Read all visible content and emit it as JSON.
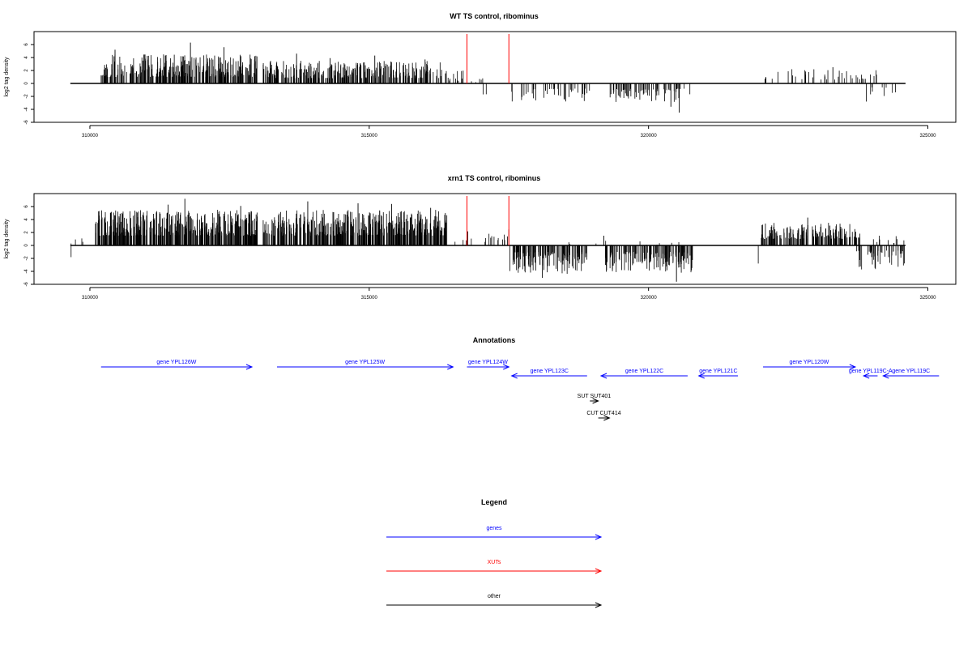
{
  "colors": {
    "gene": "#0000ff",
    "xut": "#ff0000",
    "other": "#000000",
    "marker": "#ff0000"
  },
  "chart_data": [
    {
      "type": "bar",
      "title": "WT TS control, ribominus",
      "ylabel": "log2 tag density",
      "xlim": [
        309000,
        325500
      ],
      "ylim": [
        -6,
        8
      ],
      "xticks": [
        310000,
        315000,
        320000,
        325000
      ],
      "yticks": [
        -6,
        -4,
        -2,
        0,
        2,
        4,
        6
      ],
      "baseline": [
        309650,
        324600
      ],
      "red_markers": [
        316750,
        317500
      ],
      "plus_segments": [
        {
          "from": 310200,
          "to": 313000,
          "min": 1.0,
          "max": 4.5,
          "n": 300,
          "seed": 11,
          "spikes": [
            [
              310450,
              5.2
            ],
            [
              311350,
              4.3
            ],
            [
              311800,
              6.3
            ],
            [
              312400,
              5.6
            ],
            [
              312950,
              4.2
            ]
          ]
        },
        {
          "from": 313100,
          "to": 316300,
          "min": 0.8,
          "max": 3.5,
          "n": 320,
          "seed": 23,
          "spikes": [
            [
              313700,
              4.6
            ],
            [
              314300,
              3.9
            ],
            [
              315100,
              4.3
            ],
            [
              316000,
              3.7
            ]
          ]
        },
        {
          "from": 316350,
          "to": 316700,
          "min": 0.4,
          "max": 2.0,
          "n": 14,
          "seed": 31,
          "spikes": []
        },
        {
          "from": 316800,
          "to": 317500,
          "min": 0.2,
          "max": 1.2,
          "n": 5,
          "seed": 37,
          "spikes": []
        },
        {
          "from": 322050,
          "to": 324100,
          "min": 0.6,
          "max": 2.2,
          "n": 40,
          "seed": 41,
          "spikes": [
            [
              323300,
              2.5
            ]
          ]
        }
      ],
      "minus_segments": [
        {
          "from": 317000,
          "to": 317150,
          "min": 1.5,
          "max": 2.5,
          "n": 2,
          "seed": 45,
          "spikes": []
        },
        {
          "from": 317550,
          "to": 319000,
          "min": 0.8,
          "max": 2.8,
          "n": 40,
          "seed": 47,
          "spikes": []
        },
        {
          "from": 319300,
          "to": 320750,
          "min": 0.8,
          "max": 3.0,
          "n": 70,
          "seed": 53,
          "spikes": [
            [
              320400,
              3.6
            ],
            [
              320550,
              4.5
            ]
          ]
        },
        {
          "from": 323800,
          "to": 324600,
          "min": 0.6,
          "max": 2.0,
          "n": 8,
          "seed": 59,
          "spikes": [
            [
              323900,
              2.8
            ]
          ]
        }
      ]
    },
    {
      "type": "bar",
      "title": "xrn1 TS control, ribominus",
      "ylabel": "log2 tag density",
      "xlim": [
        309000,
        325500
      ],
      "ylim": [
        -6,
        8
      ],
      "xticks": [
        310000,
        315000,
        320000,
        325000
      ],
      "yticks": [
        -6,
        -4,
        -2,
        0,
        2,
        4,
        6
      ],
      "baseline": [
        309650,
        324600
      ],
      "red_markers": [
        316750,
        317500
      ],
      "plus_segments": [
        {
          "from": 309650,
          "to": 310000,
          "min": 0.2,
          "max": 1.2,
          "n": 4,
          "seed": 61,
          "spikes": []
        },
        {
          "from": 310100,
          "to": 313000,
          "min": 1.5,
          "max": 5.5,
          "n": 420,
          "seed": 67,
          "spikes": [
            [
              311700,
              7.2
            ],
            [
              311400,
              6.3
            ],
            [
              312700,
              6.1
            ]
          ]
        },
        {
          "from": 313100,
          "to": 316400,
          "min": 1.5,
          "max": 5.5,
          "n": 440,
          "seed": 71,
          "spikes": [
            [
              313900,
              6.8
            ],
            [
              314800,
              6.5
            ],
            [
              315400,
              6.4
            ],
            [
              316100,
              5.8
            ]
          ]
        },
        {
          "from": 316500,
          "to": 317500,
          "min": 0.4,
          "max": 2.5,
          "n": 18,
          "seed": 73,
          "spikes": []
        },
        {
          "from": 318500,
          "to": 320600,
          "min": 0.1,
          "max": 0.8,
          "n": 12,
          "seed": 79,
          "spikes": [
            [
              319200,
              1.5
            ]
          ]
        },
        {
          "from": 322000,
          "to": 323800,
          "min": 1.0,
          "max": 3.5,
          "n": 170,
          "seed": 83,
          "spikes": [
            [
              322850,
              4.3
            ]
          ]
        },
        {
          "from": 323900,
          "to": 324600,
          "min": 0.3,
          "max": 1.5,
          "n": 10,
          "seed": 89,
          "spikes": []
        }
      ],
      "minus_segments": [
        {
          "from": 309650,
          "to": 309700,
          "min": 1.8,
          "max": 2.2,
          "n": 1,
          "seed": 97,
          "spikes": []
        },
        {
          "from": 317500,
          "to": 318900,
          "min": 1.0,
          "max": 4.5,
          "n": 120,
          "seed": 101,
          "spikes": [
            [
              318100,
              5.0
            ]
          ]
        },
        {
          "from": 319200,
          "to": 320800,
          "min": 1.0,
          "max": 4.2,
          "n": 140,
          "seed": 103,
          "spikes": [
            [
              320500,
              5.6
            ]
          ]
        },
        {
          "from": 321950,
          "to": 322000,
          "min": 2.5,
          "max": 2.8,
          "n": 1,
          "seed": 107,
          "spikes": []
        },
        {
          "from": 323700,
          "to": 324600,
          "min": 0.8,
          "max": 3.8,
          "n": 45,
          "seed": 109,
          "spikes": []
        }
      ]
    }
  ],
  "annotations": {
    "title": "Annotations",
    "genes": [
      {
        "label": "gene YPL126W",
        "from": 310200,
        "to": 312900,
        "strand": "+",
        "row": 0
      },
      {
        "label": "gene YPL125W",
        "from": 313350,
        "to": 316500,
        "strand": "+",
        "row": 0
      },
      {
        "label": "gene YPL124W",
        "from": 316750,
        "to": 317500,
        "strand": "+",
        "row": 0
      },
      {
        "label": "gene YPL123C",
        "from": 317550,
        "to": 318900,
        "strand": "-",
        "row": 1
      },
      {
        "label": "gene YPL122C",
        "from": 319150,
        "to": 320700,
        "strand": "-",
        "row": 1
      },
      {
        "label": "gene YPL121C",
        "from": 320900,
        "to": 321600,
        "strand": "-",
        "row": 1
      },
      {
        "label": "gene YPL120W",
        "from": 322050,
        "to": 323700,
        "strand": "+",
        "row": 0
      },
      {
        "label": "gene YPL119C-A",
        "from": 323850,
        "to": 324100,
        "strand": "-",
        "row": 1
      },
      {
        "label": "gene YPL119C",
        "from": 324200,
        "to": 325200,
        "strand": "-",
        "row": 1
      }
    ],
    "others": [
      {
        "label": "SUT SUT401",
        "from": 318950,
        "to": 319100,
        "strand": "+",
        "row": 2
      },
      {
        "label": "CUT CUT414",
        "from": 319100,
        "to": 319300,
        "strand": "+",
        "row": 3
      }
    ]
  },
  "legend": {
    "title": "Legend",
    "items": [
      {
        "label": "genes",
        "color": "#0000ff"
      },
      {
        "label": "XUTs",
        "color": "#ff0000"
      },
      {
        "label": "other",
        "color": "#000000"
      }
    ]
  }
}
